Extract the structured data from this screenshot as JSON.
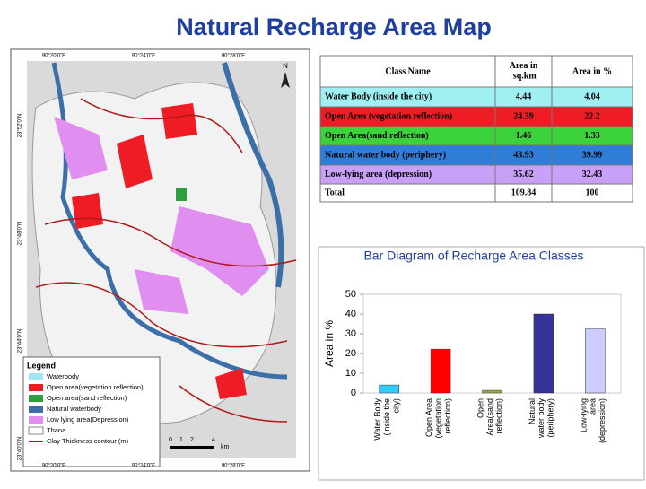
{
  "title": "Natural Recharge Area Map",
  "map": {
    "top_coords": [
      "90°20'0\"E",
      "90°24'0\"E",
      "90°28'0\"E"
    ],
    "bottom_coords": [
      "90°20'0\"E",
      "90°24'0\"E",
      "90°28'0\"E"
    ],
    "left_coords": [
      "23°52'0\"N",
      "23°48'0\"N",
      "23°44'0\"N",
      "23°40'0\"N"
    ],
    "legend_title": "Legend",
    "legend": [
      {
        "label": "Waterbody",
        "color": "#9ee8f5"
      },
      {
        "label": "Open area(vegetation reflection)",
        "color": "#ee1c24"
      },
      {
        "label": "Open area(sand reflection)",
        "color": "#2e9e3e"
      },
      {
        "label": "Natural waterbody",
        "color": "#3c6ea8"
      },
      {
        "label": "Low lying area(Depression)",
        "color": "#e08ef0"
      },
      {
        "label": "Thana",
        "color": "#888888"
      },
      {
        "label": "Clay Thickness contour (m)",
        "color": "#b01818"
      }
    ],
    "scale": [
      "0",
      "1",
      "2",
      "4",
      "km"
    ],
    "north": "N"
  },
  "table": {
    "header": [
      "Class Name",
      "Area in sq.km",
      "Area in %"
    ],
    "rows": [
      [
        "Water Body (inside the city)",
        "4.44",
        "4.04"
      ],
      [
        "Open Area (vegetation reflection)",
        "24.39",
        "22.2"
      ],
      [
        "Open Area(sand reflection)",
        "1.46",
        "1.33"
      ],
      [
        "Natural water body (periphery)",
        "43.93",
        "39.99"
      ],
      [
        "Low-lying area (depression)",
        "35.62",
        "32.43"
      ],
      [
        "Total",
        "109.84",
        "100"
      ]
    ],
    "row_colors": [
      "#9ff0f3",
      "#ee1c24",
      "#3cd23c",
      "#2e7dd6",
      "#c8a0f8",
      "#ffffff"
    ]
  },
  "chart_data": {
    "type": "bar",
    "title": "Bar Diagram of Recharge Area Classes",
    "y_label": "Area in %",
    "categories": [
      "Water Body (inside the city)",
      "Open Area (vegetation reflection)",
      "Open Area(sand reflection)",
      "Natural water body (periphery)",
      "Low-lying area (depression)"
    ],
    "values": [
      4.04,
      22.2,
      1.33,
      39.99,
      32.43
    ],
    "colors": [
      "#33ccff",
      "#ff0000",
      "#99aa44",
      "#333399",
      "#ccccff"
    ],
    "ylim": [
      0,
      50
    ],
    "yticks": [
      0,
      10,
      20,
      30,
      40,
      50
    ],
    "grid": false
  }
}
